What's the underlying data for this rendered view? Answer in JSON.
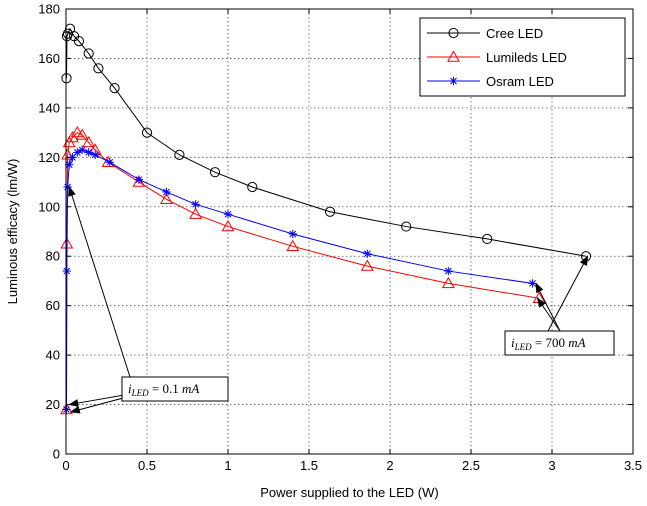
{
  "chart_data": {
    "type": "line",
    "xlabel": "Power supplied to the LED (W)",
    "ylabel": "Luminous efficacy (lm/W)",
    "xlim": [
      0,
      3.5
    ],
    "ylim": [
      0,
      180
    ],
    "xticks": [
      0,
      0.5,
      1,
      1.5,
      2,
      2.5,
      3,
      3.5
    ],
    "xtick_labels": [
      "0",
      "0.5",
      "1",
      "1.5",
      "2",
      "2.5",
      "3",
      "3.5"
    ],
    "yticks": [
      0,
      20,
      40,
      60,
      80,
      100,
      120,
      140,
      160,
      180
    ],
    "ytick_labels": [
      "0",
      "20",
      "40",
      "60",
      "80",
      "100",
      "120",
      "140",
      "160",
      "180"
    ],
    "grid": true,
    "legend_position": "top-right",
    "series": [
      {
        "name": "Cree LED",
        "color": "#000000",
        "marker": "circle",
        "x": [
          0.003,
          0.006,
          0.012,
          0.025,
          0.05,
          0.08,
          0.14,
          0.2,
          0.3,
          0.5,
          0.7,
          0.92,
          1.15,
          1.63,
          2.1,
          2.6,
          3.21
        ],
        "y": [
          152,
          169,
          170,
          172,
          169,
          167,
          162,
          156,
          148,
          130,
          121,
          114,
          108,
          98,
          92,
          87,
          80
        ]
      },
      {
        "name": "Lumileds LED",
        "color": "#ff0000",
        "marker": "triangle",
        "x": [
          0.003,
          0.005,
          0.01,
          0.02,
          0.04,
          0.07,
          0.1,
          0.14,
          0.18,
          0.26,
          0.45,
          0.62,
          0.8,
          1.0,
          1.4,
          1.86,
          2.36,
          2.92
        ],
        "y": [
          18,
          85,
          121,
          126,
          128,
          130,
          129,
          126,
          123,
          118,
          110,
          103,
          97,
          92,
          84,
          76,
          69,
          63
        ]
      },
      {
        "name": "Osram LED",
        "color": "#0000ff",
        "marker": "star",
        "x": [
          0.003,
          0.005,
          0.01,
          0.02,
          0.04,
          0.07,
          0.1,
          0.14,
          0.18,
          0.27,
          0.45,
          0.62,
          0.8,
          1.0,
          1.4,
          1.86,
          2.36,
          2.88
        ],
        "y": [
          18,
          74,
          108,
          117,
          120,
          122,
          123,
          122,
          121,
          118,
          111,
          106,
          101,
          97,
          89,
          81,
          74,
          69
        ]
      }
    ],
    "annotations": [
      {
        "text_parts": [
          {
            "t": "i",
            "style": "italic"
          },
          {
            "t": "LED",
            "style": "italic-sub"
          },
          {
            "t": " = 0.1 ",
            "style": "normal"
          },
          {
            "t": "mA",
            "style": "italic"
          }
        ]
      },
      {
        "text_parts": [
          {
            "t": "i",
            "style": "italic"
          },
          {
            "t": "LED",
            "style": "italic-sub"
          },
          {
            "t": " = 700 ",
            "style": "normal"
          },
          {
            "t": "mA",
            "style": "italic"
          }
        ]
      }
    ]
  }
}
